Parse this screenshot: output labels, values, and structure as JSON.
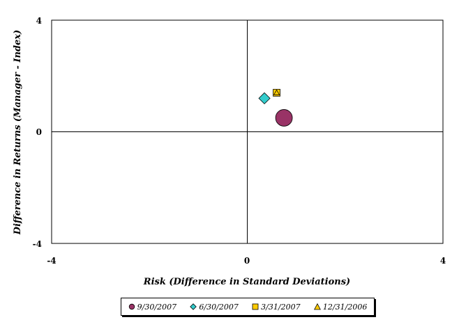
{
  "chart_data": {
    "type": "scatter",
    "title": "",
    "xlabel": "Risk (Difference in Standard Deviations)",
    "ylabel": "Difference in Returns (Manager - Index)",
    "xlim": [
      -4,
      4
    ],
    "ylim": [
      -4,
      4
    ],
    "x_ticks": [
      "-4",
      "0",
      "4"
    ],
    "y_ticks": [
      "4",
      "0",
      "-4"
    ],
    "grid": false,
    "legend": "bottom",
    "series": [
      {
        "name": "9/30/2007",
        "marker": "circle",
        "color": "#993366",
        "x": 0.75,
        "y": 0.5
      },
      {
        "name": "6/30/2007",
        "marker": "diamond",
        "color": "#33CCCC",
        "x": 0.35,
        "y": 1.2
      },
      {
        "name": "3/31/2007",
        "marker": "square",
        "color": "#FFCC00",
        "x": 0.6,
        "y": 1.4
      },
      {
        "name": "12/31/2006",
        "marker": "triangle",
        "color": "#FFCC00",
        "x": 0.6,
        "y": 1.4
      }
    ]
  }
}
